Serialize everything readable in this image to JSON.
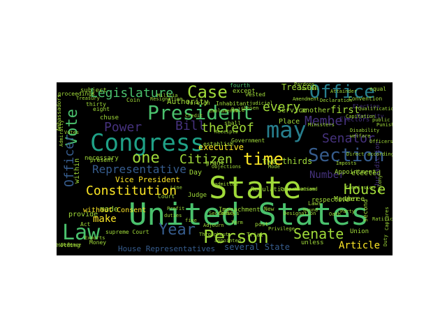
{
  "colors": {
    "background": "#000000",
    "palette": [
      "#fde725",
      "#a0da39",
      "#4ac16d",
      "#1fa187",
      "#277f8e",
      "#365c8d",
      "#46327e",
      "#440154"
    ]
  },
  "words": [
    {
      "text": "State",
      "color": "#a0da39"
    },
    {
      "text": "United States",
      "color": "#4ac16d"
    },
    {
      "text": "Law",
      "color": "#4ac16d"
    },
    {
      "text": "Congress",
      "color": "#1fa187"
    },
    {
      "text": "President",
      "color": "#4ac16d"
    },
    {
      "text": "may",
      "color": "#277f8e"
    },
    {
      "text": "Office",
      "color": "#277f8e"
    },
    {
      "text": "Section",
      "color": "#365c8d"
    },
    {
      "text": "Person",
      "color": "#a0da39"
    },
    {
      "text": "Year",
      "color": "#365c8d"
    },
    {
      "text": "Case",
      "color": "#a0da39"
    },
    {
      "text": "Legislature",
      "color": "#4ac16d"
    },
    {
      "text": "Constitution",
      "color": "#fde725"
    },
    {
      "text": "House",
      "color": "#a0da39"
    },
    {
      "text": "Senate",
      "color": "#a0da39"
    },
    {
      "text": "time",
      "color": "#fde725"
    },
    {
      "text": "one",
      "color": "#a0da39"
    },
    {
      "text": "Power",
      "color": "#46327e"
    },
    {
      "text": "Bill",
      "color": "#46327e"
    },
    {
      "text": "Vote",
      "color": "#4ac16d"
    },
    {
      "text": "Officer",
      "color": "#365c8d"
    },
    {
      "text": "thereof",
      "color": "#a0da39"
    },
    {
      "text": "Citizen",
      "color": "#a0da39"
    },
    {
      "text": "Senator",
      "color": "#46327e"
    },
    {
      "text": "Member",
      "color": "#46327e"
    },
    {
      "text": "every",
      "color": "#a0da39"
    },
    {
      "text": "Representative",
      "color": "#365c8d"
    },
    {
      "text": "Article",
      "color": "#fde725"
    },
    {
      "text": "make",
      "color": "#fde725"
    },
    {
      "text": "Number",
      "color": "#46327e"
    },
    {
      "text": "first",
      "color": "#a0da39"
    },
    {
      "text": "Treason",
      "color": "#a0da39"
    },
    {
      "text": "executive",
      "color": "#fde725"
    },
    {
      "text": "Authority",
      "color": "#a0da39"
    },
    {
      "text": "two thirds",
      "color": "#a0da39"
    },
    {
      "text": "Vice President",
      "color": "#fde725"
    },
    {
      "text": "several State",
      "color": "#365c8d"
    },
    {
      "text": "House Representatives",
      "color": "#365c8d"
    },
    {
      "text": "made",
      "color": "#a0da39"
    },
    {
      "text": "without Consent",
      "color": "#fde725"
    },
    {
      "text": "subject",
      "color": "#a0da39"
    },
    {
      "text": "except",
      "color": "#a0da39"
    },
    {
      "text": "Manner",
      "color": "#a0da39"
    },
    {
      "text": "three",
      "color": "#a0da39"
    },
    {
      "text": "Day",
      "color": "#a0da39"
    },
    {
      "text": "elected",
      "color": "#a0da39"
    },
    {
      "text": "Place",
      "color": "#a0da39"
    },
    {
      "text": "Service",
      "color": "#a0da39"
    },
    {
      "text": "within",
      "color": "#a0da39"
    },
    {
      "text": "provide",
      "color": "#a0da39"
    },
    {
      "text": "chuse",
      "color": "#a0da39"
    },
    {
      "text": "Coin",
      "color": "#a0da39"
    },
    {
      "text": "foreign",
      "color": "#a0da39"
    },
    {
      "text": "fourth",
      "color": "#4ac16d"
    },
    {
      "text": "necessary",
      "color": "#a0da39"
    },
    {
      "text": "Regulation",
      "color": "#a0da39"
    },
    {
      "text": "Judge",
      "color": "#a0da39"
    },
    {
      "text": "Impeachment",
      "color": "#a0da39"
    },
    {
      "text": "Union",
      "color": "#a0da39"
    },
    {
      "text": "Money",
      "color": "#a0da39"
    },
    {
      "text": "present",
      "color": "#a0da39"
    },
    {
      "text": "eight",
      "color": "#a0da39"
    },
    {
      "text": "thirty",
      "color": "#a0da39"
    },
    {
      "text": "Act",
      "color": "#a0da39"
    },
    {
      "text": "second",
      "color": "#a0da39"
    },
    {
      "text": "another",
      "color": "#a0da39"
    },
    {
      "text": "Electors",
      "color": "#46327e"
    },
    {
      "text": "Election",
      "color": "#46327e"
    },
    {
      "text": "respective",
      "color": "#a0da39"
    },
    {
      "text": "grant",
      "color": "#a0da39"
    },
    {
      "text": "establish",
      "color": "#a0da39"
    },
    {
      "text": "Government",
      "color": "#a0da39"
    },
    {
      "text": "Appointment",
      "color": "#a0da39"
    },
    {
      "text": "Jurisdiction",
      "color": "#46327e"
    },
    {
      "text": "unless",
      "color": "#a0da39"
    },
    {
      "text": "post",
      "color": "#a0da39"
    },
    {
      "text": "Trial",
      "color": "#a0da39"
    },
    {
      "text": "New",
      "color": "#a0da39"
    },
    {
      "text": "vested",
      "color": "#a0da39"
    },
    {
      "text": "Convention",
      "color": "#a0da39"
    },
    {
      "text": "Majority",
      "color": "#46327e"
    },
    {
      "text": "shall",
      "color": "#a0da39"
    },
    {
      "text": "Rule",
      "color": "#a0da39"
    },
    {
      "text": "Inhabitant",
      "color": "#a0da39"
    },
    {
      "text": "proceedings",
      "color": "#a0da39"
    },
    {
      "text": "Ambassadors",
      "color": "#a0da39"
    },
    {
      "text": "supreme Court",
      "color": "#a0da39"
    },
    {
      "text": "Holding",
      "color": "#a0da39"
    },
    {
      "text": "equal",
      "color": "#a0da39"
    },
    {
      "text": "Laws",
      "color": "#a0da39"
    },
    {
      "text": "Treasury",
      "color": "#a0da39"
    },
    {
      "text": "Profit",
      "color": "#a0da39"
    },
    {
      "text": "admitted",
      "color": "#a0da39"
    },
    {
      "text": "Court",
      "color": "#a0da39"
    },
    {
      "text": "duties",
      "color": "#a0da39"
    },
    {
      "text": "appointed",
      "color": "#a0da39"
    },
    {
      "text": "public",
      "color": "#a0da39"
    },
    {
      "text": "Ministers",
      "color": "#a0da39"
    },
    {
      "text": "according",
      "color": "#a0da39"
    },
    {
      "text": "Qualification",
      "color": "#a0da39"
    },
    {
      "text": "welfare",
      "color": "#a0da39"
    },
    {
      "text": "thousand",
      "color": "#a0da39"
    },
    {
      "text": "Punishment",
      "color": "#a0da39"
    },
    {
      "text": "Designation",
      "color": "#a0da39"
    },
    {
      "text": "Line",
      "color": "#a0da39"
    },
    {
      "text": "bound",
      "color": "#a0da39"
    },
    {
      "text": "judicial",
      "color": "#a0da39"
    },
    {
      "text": "five",
      "color": "#a0da39"
    },
    {
      "text": "Throughout",
      "color": "#a0da39"
    },
    {
      "text": "Receipts",
      "color": "#a0da39"
    },
    {
      "text": "Exports",
      "color": "#a0da39"
    },
    {
      "text": "Emoluments",
      "color": "#a0da39"
    },
    {
      "text": "Direct",
      "color": "#a0da39"
    },
    {
      "text": "Defence",
      "color": "#a0da39"
    },
    {
      "text": "Militia",
      "color": "#a0da39"
    },
    {
      "text": "Secretary",
      "color": "#a0da39"
    },
    {
      "text": "Objections",
      "color": "#a0da39"
    },
    {
      "text": "Imposts",
      "color": "#a0da39"
    },
    {
      "text": "Adjourn",
      "color": "#a0da39"
    },
    {
      "text": "Consuls",
      "color": "#a0da39"
    },
    {
      "text": "Disability",
      "color": "#a0da39"
    },
    {
      "text": "Captures",
      "color": "#a0da39"
    },
    {
      "text": "chosen",
      "color": "#a0da39"
    },
    {
      "text": "Journal",
      "color": "#a0da39"
    },
    {
      "text": "Oath",
      "color": "#a0da39"
    },
    {
      "text": "Amendment",
      "color": "#a0da39"
    },
    {
      "text": "Mode",
      "color": "#a0da39"
    },
    {
      "text": "Credit",
      "color": "#a0da39"
    },
    {
      "text": "Party",
      "color": "#a0da39"
    },
    {
      "text": "Term",
      "color": "#a0da39"
    },
    {
      "text": "Duty",
      "color": "#a0da39"
    },
    {
      "text": "Felony",
      "color": "#a0da39"
    },
    {
      "text": "Attainder",
      "color": "#a0da39"
    },
    {
      "text": "Admiralty",
      "color": "#a0da39"
    },
    {
      "text": "Officers",
      "color": "#a0da39"
    },
    {
      "text": "Ratification",
      "color": "#a0da39"
    },
    {
      "text": "Resignation",
      "color": "#a0da39"
    },
    {
      "text": "Compensation",
      "color": "#a0da39"
    },
    {
      "text": "Commission",
      "color": "#a0da39"
    },
    {
      "text": "Privilege",
      "color": "#a0da39"
    },
    {
      "text": "Pardons",
      "color": "#a0da39"
    },
    {
      "text": "Declaration",
      "color": "#a0da39"
    },
    {
      "text": "Capitation",
      "color": "#a0da39"
    },
    {
      "text": "Votes",
      "color": "#a0da39"
    }
  ]
}
